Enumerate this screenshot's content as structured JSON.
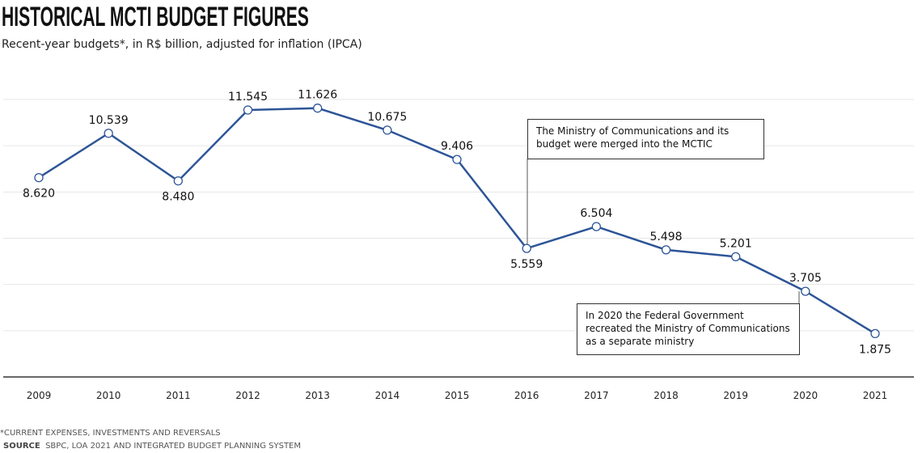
{
  "chart_data": {
    "type": "line",
    "title": "HISTORICAL MCTI BUDGET FIGURES",
    "subtitle": "Recent-year budgets*, in R$ billion, adjusted for inflation (IPCA)",
    "xlabel": "",
    "ylabel": "",
    "categories": [
      "2009",
      "2010",
      "2011",
      "2012",
      "2013",
      "2014",
      "2015",
      "2016",
      "2017",
      "2018",
      "2019",
      "2020",
      "2021"
    ],
    "values": [
      8.62,
      10.539,
      8.48,
      11.545,
      11.626,
      10.675,
      9.406,
      5.559,
      6.504,
      5.498,
      5.201,
      3.705,
      1.875
    ],
    "labels": [
      "8.620",
      "10.539",
      "8.480",
      "11.545",
      "11.626",
      "10.675",
      "9.406",
      "5.559",
      "6.504",
      "5.498",
      "5.201",
      "3.705",
      "1.875"
    ],
    "label_below": [
      true,
      false,
      true,
      false,
      false,
      false,
      false,
      true,
      false,
      false,
      false,
      false,
      true
    ],
    "ylim": [
      0,
      12
    ],
    "grid": true,
    "line_color": "#2d5597",
    "annotations": [
      {
        "text": "The Ministry of Communications and its budget were merged into the MCTIC",
        "year": "2016"
      },
      {
        "text": "In 2020 the Federal Government recreated the Ministry of Communications as a separate ministry",
        "year": "2020"
      }
    ]
  },
  "footnote": "*CURRENT EXPENSES, INVESTMENTS AND REVERSALS",
  "source_label": "SOURCE",
  "source_text": "SBPC, LOA 2021 AND INTEGRATED BUDGET PLANNING SYSTEM"
}
